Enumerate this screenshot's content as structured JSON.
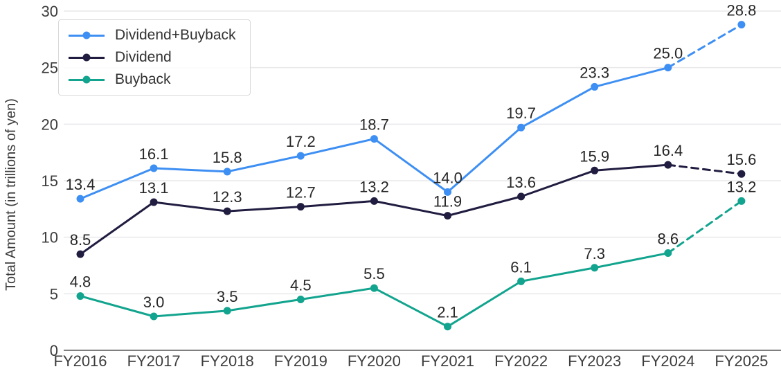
{
  "chart_data": {
    "type": "line",
    "categories": [
      "FY2016",
      "FY2017",
      "FY2018",
      "FY2019",
      "FY2020",
      "FY2021",
      "FY2022",
      "FY2023",
      "FY2024",
      "FY2025"
    ],
    "series": [
      {
        "name": "Dividend+Buyback",
        "color": "#3E8FF3",
        "values": [
          13.4,
          16.1,
          15.8,
          17.2,
          18.7,
          14.0,
          19.7,
          23.3,
          25.0,
          28.8
        ],
        "dashed_from_index": 8
      },
      {
        "name": "Dividend",
        "color": "#211D41",
        "values": [
          8.5,
          13.1,
          12.3,
          12.7,
          13.2,
          11.9,
          13.6,
          15.9,
          16.4,
          15.6
        ],
        "dashed_from_index": 8
      },
      {
        "name": "Buyback",
        "color": "#12A48E",
        "values": [
          4.8,
          3.0,
          3.5,
          4.5,
          5.5,
          2.1,
          6.1,
          7.3,
          8.6,
          13.2
        ],
        "dashed_from_index": 8
      }
    ],
    "title": "",
    "xlabel": "",
    "ylabel": "Total Amount (in trillions of yen)",
    "ylim": [
      0,
      30
    ],
    "yticks": [
      0,
      5,
      10,
      15,
      20,
      25,
      30
    ],
    "grid": true,
    "legend_position": "top-left",
    "value_labels": true,
    "value_label_format": "one_decimal",
    "style": {
      "grid_color": "#e9e9eb",
      "axis_color": "#7f7f7f",
      "tick_text_color": "#3c3c3c",
      "value_text_color": "#262626",
      "legend_border_color": "#d9d9d9"
    }
  }
}
